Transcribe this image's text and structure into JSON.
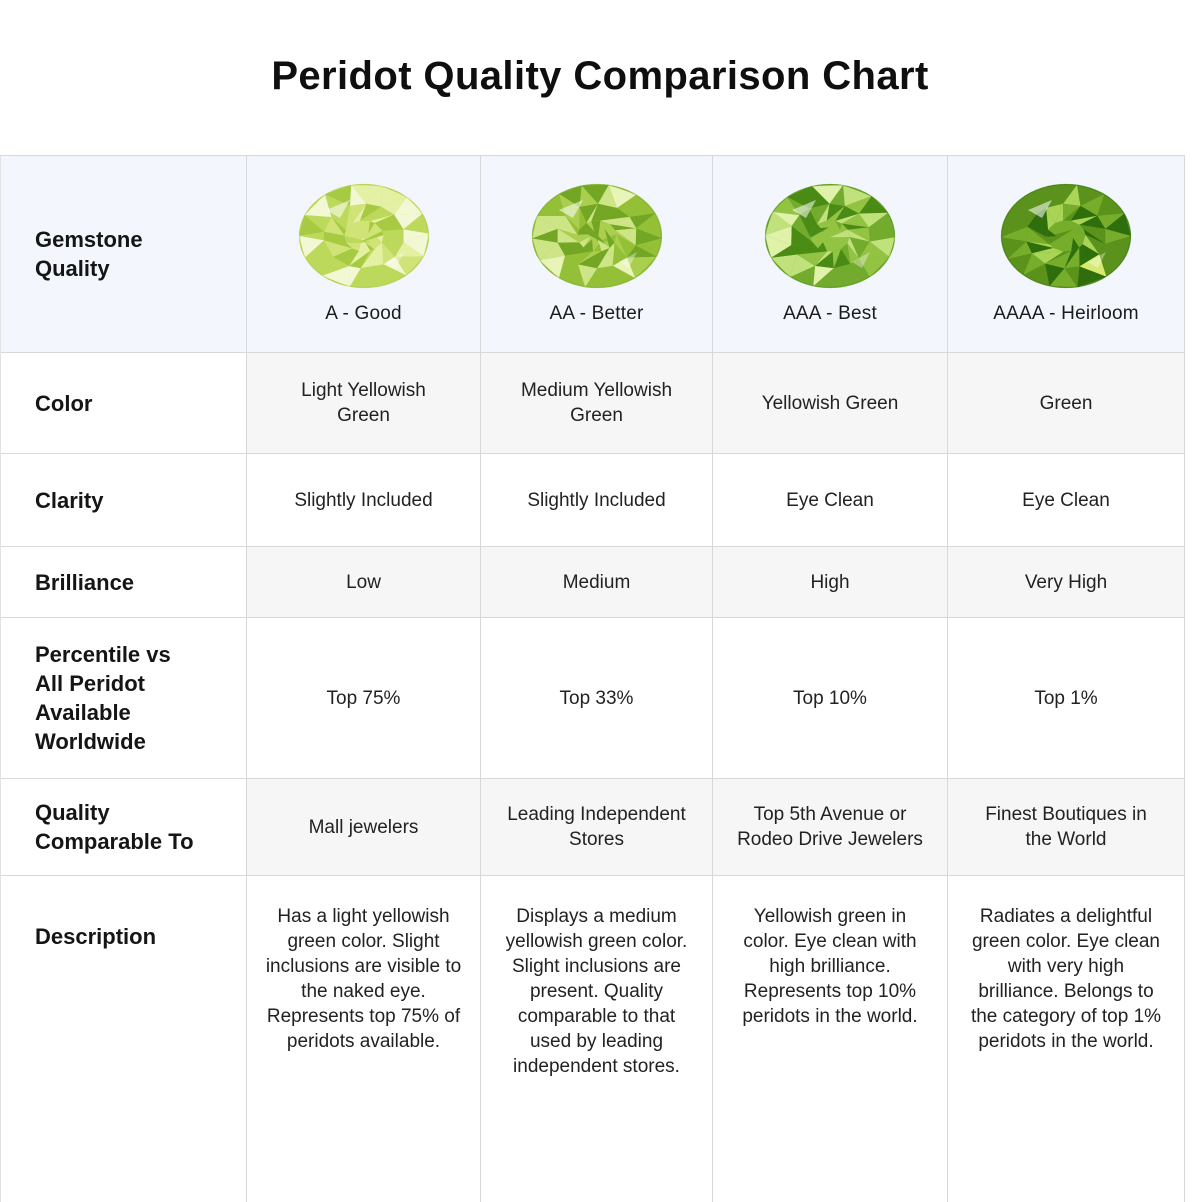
{
  "title": "Peridot Quality Comparison Chart",
  "chart_data": {
    "type": "table",
    "title": "Peridot Quality Comparison Chart",
    "columns": [
      "Gemstone Quality",
      "A - Good",
      "AA - Better",
      "AAA - Best",
      "AAAA - Heirloom"
    ],
    "rows": [
      [
        "Color",
        "Light Yellowish Green",
        "Medium Yellowish Green",
        "Yellowish Green",
        "Green"
      ],
      [
        "Clarity",
        "Slightly Included",
        "Slightly Included",
        "Eye Clean",
        "Eye Clean"
      ],
      [
        "Brilliance",
        "Low",
        "Medium",
        "High",
        "Very High"
      ],
      [
        "Percentile vs All Peridot Available Worldwide",
        "Top 75%",
        "Top 33%",
        "Top 10%",
        "Top 1%"
      ],
      [
        "Quality Comparable To",
        "Mall jewelers",
        "Leading Independent Stores",
        "Top 5th Avenue or Rodeo Drive Jewelers",
        "Finest Boutiques in the World"
      ],
      [
        "Description",
        "Has a light yellowish green color. Slight inclusions are visible to the naked eye. Represents top 75% of peridots available.",
        "Displays a medium yellowish green color. Slight inclusions are present. Quality comparable to that used by leading independent stores.",
        "Yellowish green in color. Eye clean with high brilliance. Represents top 10% peridots in the world.",
        "Radiates a delightful green color. Eye clean with very high brilliance. Belongs to the category of top 1% peridots in the world."
      ]
    ],
    "legend_position": "none",
    "grid": true
  },
  "gems": [
    {
      "name": "peridot-a-good",
      "palette": {
        "base": "#cfe377",
        "light": "#e4f0a4",
        "mid": "#bdd95c",
        "dark": "#a6ca42",
        "hi": "#f3f8d4"
      },
      "seed": 3
    },
    {
      "name": "peridot-aa-better",
      "palette": {
        "base": "#aacf4e",
        "light": "#cde586",
        "mid": "#94c038",
        "dark": "#74a625",
        "hi": "#e9f5b8"
      },
      "seed": 7
    },
    {
      "name": "peridot-aaa-best",
      "palette": {
        "base": "#92c342",
        "light": "#c1e17c",
        "mid": "#72ab2d",
        "dark": "#4a8b15",
        "hi": "#e0f1a9"
      },
      "seed": 11
    },
    {
      "name": "peridot-aaaa-heirloom",
      "palette": {
        "base": "#76ad2a",
        "light": "#a9d455",
        "mid": "#5a921c",
        "dark": "#2f6e0c",
        "hi": "#d6ea72"
      },
      "seed": 5
    }
  ],
  "colors": {
    "header_bg": "#f3f7fd",
    "alt_row_bg": "#f6f6f7",
    "border": "#d8d8d8",
    "text": "#1d1d1d"
  }
}
